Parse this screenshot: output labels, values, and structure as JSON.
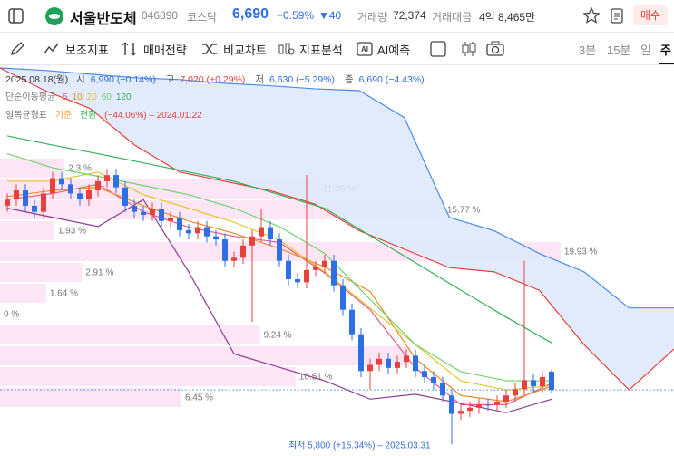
{
  "header": {
    "name": "서울반도체",
    "code": "046890",
    "market": "코스닥",
    "price": "6,690",
    "change_pct": "−0.59%",
    "change": "▼40",
    "volume_label": "거래량",
    "volume": "72,374",
    "amount_label": "거래대금",
    "amount": "4억 8,465만",
    "buy": "매수"
  },
  "toolbar": {
    "items": [
      "보조지표",
      "매매전략",
      "비교차트",
      "지표분석",
      "AI예측"
    ],
    "periods": [
      "3분",
      "15분",
      "일",
      "주"
    ]
  },
  "chart": {
    "date": "2025.08.18(월)",
    "ohlc": [
      {
        "label": "시",
        "text": "6,990 (−0.14%)"
      },
      {
        "label": "고",
        "text": "7,020 (+0.29%)"
      },
      {
        "label": "저",
        "text": "6,630 (−5.29%)"
      },
      {
        "label": "종",
        "text": "6,690 (−4.43%)"
      }
    ],
    "ma_title": "단순이동평균",
    "ichimoku": {
      "title": "일목균형표",
      "items": [
        "기준",
        "전환"
      ],
      "note": "(−44.06%) – 2024.01.22"
    },
    "ylim": [
      5730,
      11950
    ],
    "up_color": "#e8403c",
    "down_color": "#2f6fe4",
    "candles": {
      "open": [
        9700,
        9800,
        9950,
        9700,
        9600,
        9900,
        10150,
        10050,
        9900,
        9800,
        9950,
        10100,
        10200,
        10000,
        9700,
        9600,
        9550,
        9650,
        9450,
        9500,
        9300,
        9250,
        9350,
        9200,
        9150,
        8800,
        8850,
        9050,
        9200,
        9350,
        9150,
        8800,
        8500,
        8450,
        8650,
        8700,
        8800,
        8400,
        8000,
        7600,
        7000,
        7100,
        7200,
        7050,
        7150,
        7250,
        7000,
        6900,
        6800,
        6600,
        6300,
        6350,
        6400,
        6450,
        6450,
        6500,
        6600,
        6700,
        6850,
        6750,
        6990
      ],
      "high": [
        9900,
        10050,
        10050,
        9800,
        10000,
        10250,
        10250,
        10150,
        10000,
        10050,
        10200,
        10300,
        10300,
        10100,
        9800,
        9700,
        9750,
        9750,
        9600,
        9600,
        9400,
        9450,
        9450,
        9300,
        9250,
        8950,
        9150,
        9300,
        9650,
        9450,
        9250,
        8900,
        8600,
        10200,
        8800,
        8900,
        8900,
        8500,
        8100,
        7700,
        7200,
        7300,
        7300,
        7250,
        7350,
        7350,
        7100,
        7000,
        6900,
        6700,
        6450,
        6500,
        6550,
        6550,
        6600,
        6700,
        6800,
        8800,
        6950,
        7000,
        7020
      ],
      "low": [
        9600,
        9700,
        9600,
        9500,
        9500,
        9800,
        9950,
        9800,
        9700,
        9700,
        9850,
        10000,
        9900,
        9600,
        9500,
        9450,
        9450,
        9350,
        9350,
        9200,
        9150,
        9150,
        9100,
        9050,
        8700,
        8700,
        8750,
        7800,
        9100,
        9050,
        8700,
        8400,
        8350,
        8350,
        8550,
        8600,
        8300,
        7900,
        7500,
        6900,
        6700,
        7000,
        6950,
        6950,
        7050,
        6900,
        6800,
        6700,
        6500,
        5800,
        6200,
        6250,
        6300,
        6350,
        6350,
        6400,
        6500,
        6600,
        6650,
        6650,
        6630
      ],
      "close": [
        9800,
        9950,
        9700,
        9600,
        9900,
        10150,
        10050,
        9900,
        9800,
        9950,
        10100,
        10200,
        10000,
        9700,
        9600,
        9550,
        9650,
        9450,
        9500,
        9300,
        9250,
        9350,
        9200,
        9150,
        8800,
        8850,
        9050,
        9200,
        9350,
        9150,
        8800,
        8500,
        8450,
        8650,
        8700,
        8800,
        8400,
        8000,
        7600,
        7000,
        7100,
        7200,
        7050,
        7150,
        7250,
        7000,
        6900,
        6800,
        6600,
        6300,
        6350,
        6400,
        6450,
        6450,
        6500,
        6600,
        6700,
        6850,
        6750,
        6900,
        6690
      ]
    },
    "ma_lines": [
      {
        "name": "5",
        "color": "#e55a8a",
        "values": [
          9800,
          9900,
          10050,
          9600,
          9350,
          9200,
          9100,
          8600,
          8000,
          7050,
          6450,
          6450,
          6800
        ]
      },
      {
        "name": "10",
        "color": "#f08a24",
        "values": [
          9850,
          9950,
          10000,
          9700,
          9450,
          9250,
          9000,
          8700,
          8300,
          7200,
          6600,
          6500,
          6750
        ]
      },
      {
        "name": "20",
        "color": "#e6c42a",
        "values": [
          10100,
          10100,
          10250,
          9880,
          9660,
          9430,
          9140,
          8620,
          8030,
          7430,
          6840,
          6690,
          6760
        ]
      },
      {
        "name": "60",
        "color": "#6fd36f",
        "values": [
          10550,
          10320,
          10180,
          10030,
          9880,
          9660,
          9360,
          8920,
          8170,
          7430,
          6990,
          6840,
          6840
        ]
      },
      {
        "name": "120",
        "color": "#35b05a",
        "values": [
          10840,
          10690,
          10550,
          10400,
          10250,
          10100,
          9880,
          9660,
          9210,
          8770,
          8320,
          7880,
          7460
        ]
      }
    ],
    "overlay": {
      "color": "#8e3b8f",
      "values": [
        9660,
        9510,
        9360,
        9800,
        8620,
        7280,
        7060,
        6840,
        6540,
        6620,
        6470,
        6320,
        6540
      ]
    },
    "cloud": {
      "span1_color": "#4a8be8",
      "span2_color": "#e8403c",
      "fill": "#dfe9fb",
      "span1": [
        11950,
        11910,
        11850,
        11790,
        11760,
        11700,
        11660,
        11610,
        11580,
        11140,
        9510,
        9290,
        8920,
        8620,
        8030,
        8030
      ],
      "span2": [
        11950,
        11580,
        11290,
        10690,
        10250,
        10100,
        9950,
        9730,
        9290,
        8990,
        8690,
        8620,
        8320,
        7430,
        6690,
        7360
      ]
    },
    "volume_profile": [
      {
        "value": 2.3,
        "label": "2.3 %"
      },
      {
        "value": 11.35,
        "label": "11.35 %"
      },
      {
        "value": 15.77,
        "label": "15.77 %"
      },
      {
        "value": 1.93,
        "label": "1.93 %"
      },
      {
        "value": 19.93,
        "label": "19.93 %"
      },
      {
        "value": 2.91,
        "label": "2.91 %"
      },
      {
        "value": 1.64,
        "label": "1.64 %"
      },
      {
        "value": 0,
        "label": "0 %"
      },
      {
        "value": 9.24,
        "label": "9.24 %"
      },
      {
        "value": 14.6
      },
      {
        "value": 10.51,
        "label": "10.51 %"
      },
      {
        "value": 6.45,
        "label": "6.45 %"
      }
    ],
    "low_note": "최저 5,800 (+15.34%) – 2025.03.31"
  }
}
